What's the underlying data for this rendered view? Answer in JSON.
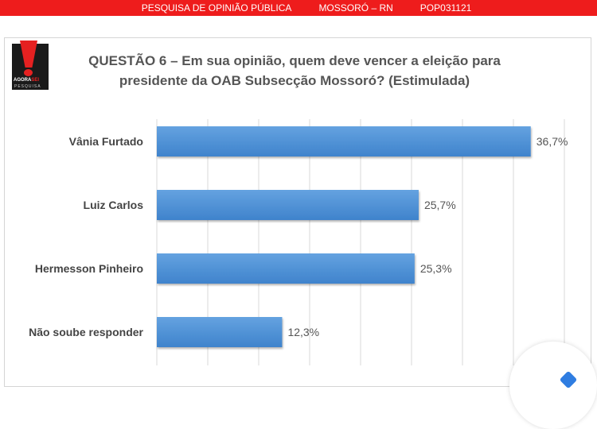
{
  "banner": {
    "survey": "PESQUISA DE OPINIÃO PÚBLICA",
    "location": "MOSSORÓ – RN",
    "code": "POP031121"
  },
  "logo": {
    "text": "AGORA SEI",
    "sub": "PESQUISA"
  },
  "chart_data": {
    "type": "bar",
    "orientation": "horizontal",
    "title": "QUESTÃO 6 – Em sua opinião, quem deve vencer a eleição para presidente da OAB Subsecção Mossoró? (Estimulada)",
    "title_lines": [
      "QUESTÃO 6 – Em sua opinião, quem deve vencer a eleição para",
      "presidente da OAB Subsecção Mossoró? (Estimulada)"
    ],
    "categories": [
      "Vânia Furtado",
      "Luiz Carlos",
      "Hermesson Pinheiro",
      "Não soube responder"
    ],
    "values": [
      36.7,
      25.7,
      25.3,
      12.3
    ],
    "labels": [
      "36,7%",
      "25,7%",
      "25,3%",
      "12,3%"
    ],
    "xlim": [
      0,
      40
    ],
    "grid_step": 5,
    "grid": true,
    "bar_color": "#4a8fd6"
  }
}
